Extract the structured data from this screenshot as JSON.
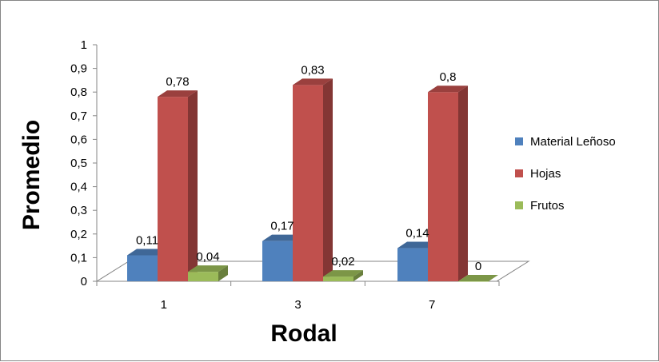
{
  "chart_data": {
    "type": "bar",
    "style": "3d-clustered-column",
    "title": "",
    "xlabel": "Rodal",
    "ylabel": "Promedio",
    "categories": [
      "1",
      "3",
      "7"
    ],
    "ylim": [
      0,
      1
    ],
    "yticks": [
      "0",
      "0,1",
      "0,2",
      "0,3",
      "0,4",
      "0,5",
      "0,6",
      "0,7",
      "0,8",
      "0,9",
      "1"
    ],
    "series": [
      {
        "name": "Material Leñoso",
        "values": [
          0.11,
          0.17,
          0.14
        ],
        "labels": [
          "0,11",
          "0,17",
          "0,14"
        ],
        "color": "#4F81BD"
      },
      {
        "name": "Hojas",
        "values": [
          0.78,
          0.83,
          0.8
        ],
        "labels": [
          "0,78",
          "0,83",
          "0,8"
        ],
        "color": "#C0504D"
      },
      {
        "name": "Frutos",
        "values": [
          0.04,
          0.02,
          0
        ],
        "labels": [
          "0,04",
          "0,02",
          "0"
        ],
        "color": "#9BBB59"
      }
    ],
    "legend_position": "right",
    "grid": false
  }
}
